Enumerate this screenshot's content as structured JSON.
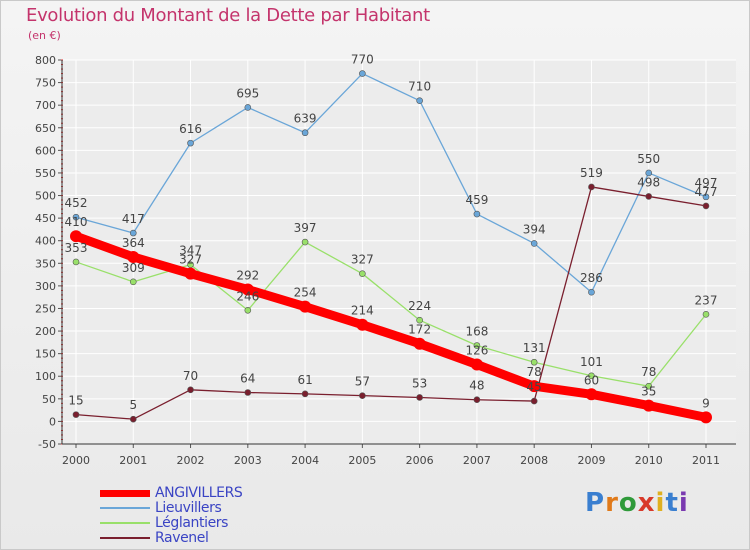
{
  "title": "Evolution du Montant de la Dette par Habitant",
  "subtitle": "(en €)",
  "logo_text": "Proxiti",
  "colors": {
    "title": "#c4346c",
    "grid": "#ffffff",
    "axis": "#333333",
    "label": "#444444"
  },
  "chart_data": {
    "type": "line",
    "x": [
      "2000",
      "2001",
      "2002",
      "2003",
      "2004",
      "2005",
      "2006",
      "2007",
      "2008",
      "2009",
      "2010",
      "2011"
    ],
    "ylim": [
      -50,
      800
    ],
    "yticks": [
      -50,
      0,
      50,
      100,
      150,
      200,
      250,
      300,
      350,
      400,
      450,
      500,
      550,
      600,
      650,
      700,
      750,
      800
    ],
    "grid": true,
    "legend_position": "bottom-left",
    "series": [
      {
        "name": "ANGIVILLERS",
        "color": "#ff0000",
        "width": 9,
        "marker_r": 6,
        "values": [
          410,
          364,
          327,
          292,
          254,
          214,
          172,
          126,
          78,
          60,
          35,
          9
        ]
      },
      {
        "name": "Lieuvillers",
        "color": "#6aa6d8",
        "width": 1.3,
        "marker_r": 3,
        "values": [
          452,
          417,
          616,
          695,
          639,
          770,
          710,
          459,
          394,
          286,
          550,
          497
        ]
      },
      {
        "name": "Léglantiers",
        "color": "#99e06a",
        "width": 1.3,
        "marker_r": 3,
        "values": [
          353,
          309,
          347,
          246,
          397,
          327,
          224,
          168,
          131,
          101,
          78,
          237
        ]
      },
      {
        "name": "Ravenel",
        "color": "#7a1f2e",
        "width": 1.3,
        "marker_r": 3,
        "values": [
          15,
          5,
          70,
          64,
          61,
          57,
          53,
          48,
          45,
          519,
          498,
          477
        ]
      }
    ]
  },
  "legend_items": [
    "ANGIVILLERS",
    "Lieuvillers",
    "Léglantiers",
    "Ravenel"
  ]
}
